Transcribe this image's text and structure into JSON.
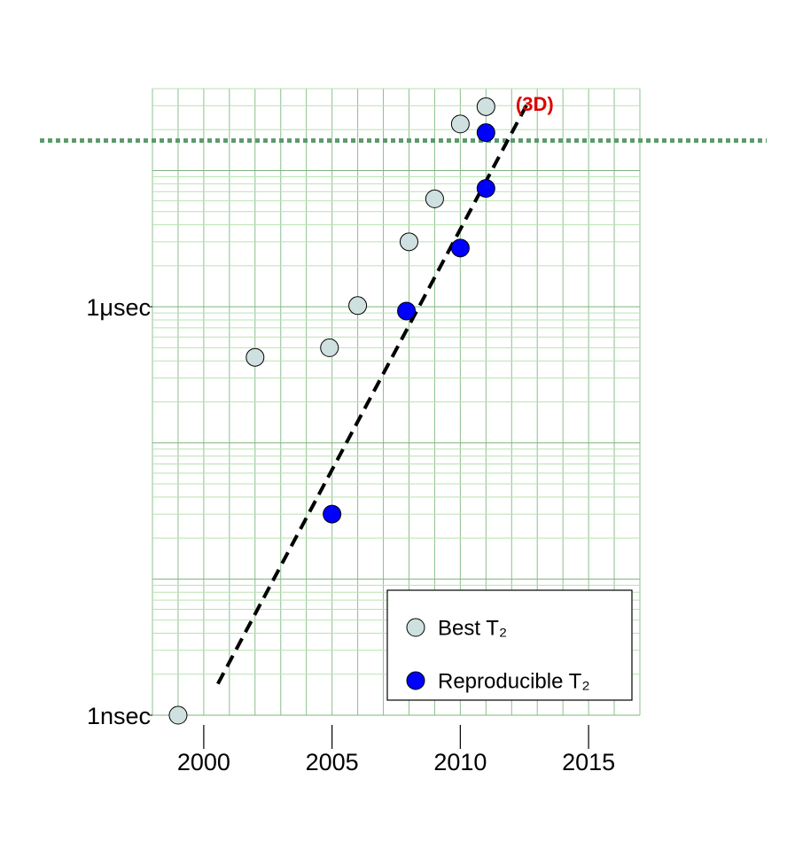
{
  "chart_data": {
    "type": "scatter",
    "log_y": true,
    "grid": true,
    "legend": "lower right",
    "xlim": [
      1998,
      2017
    ],
    "xticks": [
      2000,
      2005,
      2010,
      2015
    ],
    "ylim": [
      1,
      40000
    ],
    "yticks": [
      {
        "value": 1,
        "label": "1nsec"
      },
      {
        "value": 1000,
        "label": "1μsec"
      }
    ],
    "series": [
      {
        "name": "Best T₂",
        "color": "#cfe0e0",
        "x": [
          1999,
          2002,
          2004.9,
          2006,
          2008,
          2009,
          2010,
          2011
        ],
        "values": [
          1,
          425,
          500,
          1020,
          3000,
          6200,
          22000,
          29500
        ]
      },
      {
        "name": "Reproducible T₂",
        "color": "#0000ff",
        "x": [
          2005,
          2007.9,
          2010,
          2011,
          2011
        ],
        "values": [
          30,
          930,
          2700,
          7400,
          19000
        ]
      }
    ],
    "trend": {
      "x": [
        2000.55,
        2012.65
      ],
      "values": [
        1.7,
        32000
      ],
      "color": "#000000"
    },
    "reference_line": {
      "value": 16600,
      "color": "#5a9a6a"
    },
    "annotation": {
      "text": "(3D)",
      "x": 2012.9,
      "value": 30000,
      "color": "#dd0000"
    }
  }
}
